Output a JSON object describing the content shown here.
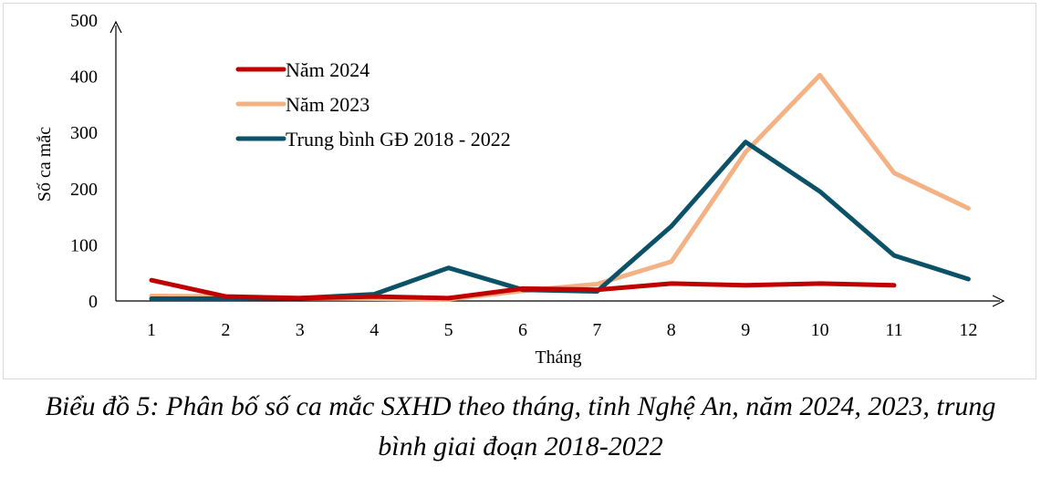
{
  "chart_data": {
    "type": "line",
    "xlabel": "Tháng",
    "ylabel": "Số ca mắc",
    "ylim": [
      0,
      500
    ],
    "yticks": [
      "0",
      "100",
      "200",
      "300",
      "400",
      "500"
    ],
    "categories": [
      "1",
      "2",
      "3",
      "4",
      "5",
      "6",
      "7",
      "8",
      "9",
      "10",
      "11",
      "12"
    ],
    "grid": false,
    "legend_position": "top-left",
    "series": [
      {
        "name": "Năm 2024",
        "color": "#c00000",
        "values": [
          37,
          8,
          5,
          8,
          5,
          22,
          20,
          31,
          28,
          31,
          28,
          null
        ]
      },
      {
        "name": "Năm 2023",
        "color": "#f4b183",
        "values": [
          9,
          8,
          5,
          4,
          3,
          18,
          30,
          70,
          265,
          402,
          228,
          165
        ]
      },
      {
        "name": "Trung bình GĐ 2018 - 2022",
        "color": "#0b5268",
        "values": [
          4,
          4,
          5,
          12,
          59,
          20,
          17,
          133,
          283,
          195,
          81,
          39
        ]
      }
    ]
  },
  "caption": {
    "line1": "Biểu đồ 5: Phân bố số ca mắc SXHD theo tháng, tỉnh Nghệ An, năm 2024, 2023, trung",
    "line2": "bình giai đoạn 2018-2022"
  }
}
